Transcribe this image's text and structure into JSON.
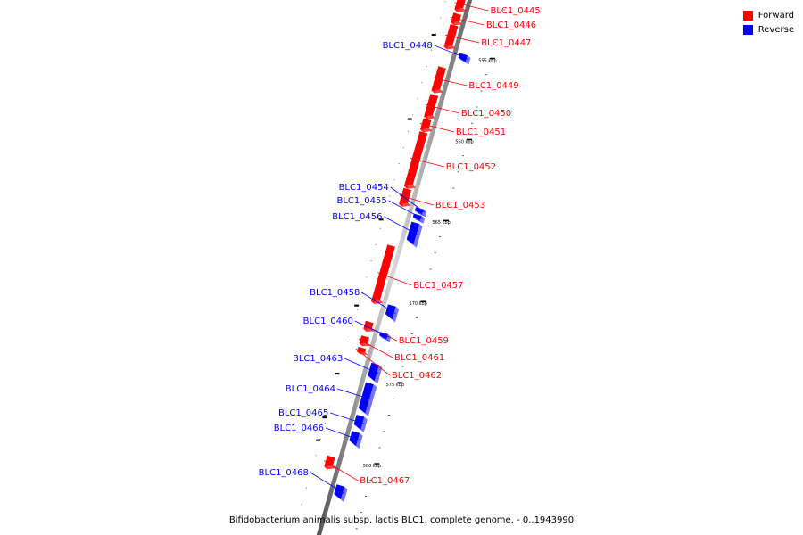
{
  "colors": {
    "forward": "#ff0000",
    "reverse": "#0000ff"
  },
  "legend": [
    {
      "label": "Forward",
      "color": "#ff0000"
    },
    {
      "label": "Reverse",
      "color": "#0000ff"
    }
  ],
  "caption": "Bifidobacterium animalis subsp. lactis BLC1, complete genome. - 0..1943990",
  "genome_range": {
    "start_kbp": 552,
    "end_kbp": 585
  },
  "scale_marks": [
    {
      "label": "555 kbp",
      "kbp": 555
    },
    {
      "label": "560 kbp",
      "kbp": 560
    },
    {
      "label": "565 kbp",
      "kbp": 565
    },
    {
      "label": "570 kbp",
      "kbp": 570
    },
    {
      "label": "575 kbp",
      "kbp": 575
    },
    {
      "label": "580 kbp",
      "kbp": 580
    }
  ],
  "genes": [
    {
      "label": "BLC1_0445",
      "strand": "forward",
      "start_kbp": 552.0,
      "end_kbp": 552.8
    },
    {
      "label": "BLC1_0446",
      "strand": "forward",
      "start_kbp": 553.0,
      "end_kbp": 553.6
    },
    {
      "label": "BLC1_0447",
      "strand": "forward",
      "start_kbp": 553.7,
      "end_kbp": 555.1
    },
    {
      "label": "BLC1_0448",
      "strand": "reverse",
      "start_kbp": 555.2,
      "end_kbp": 555.6
    },
    {
      "label": "BLC1_0449",
      "strand": "forward",
      "start_kbp": 556.3,
      "end_kbp": 557.8
    },
    {
      "label": "BLC1_0450",
      "strand": "forward",
      "start_kbp": 558.0,
      "end_kbp": 559.4
    },
    {
      "label": "BLC1_0451",
      "strand": "forward",
      "start_kbp": 559.5,
      "end_kbp": 560.2
    },
    {
      "label": "BLC1_0452",
      "strand": "forward",
      "start_kbp": 560.3,
      "end_kbp": 563.7
    },
    {
      "label": "BLC1_0453",
      "strand": "forward",
      "start_kbp": 563.8,
      "end_kbp": 564.8
    },
    {
      "label": "BLC1_0454",
      "strand": "reverse",
      "start_kbp": 564.7,
      "end_kbp": 565.0
    },
    {
      "label": "BLC1_0455",
      "strand": "reverse",
      "start_kbp": 565.1,
      "end_kbp": 565.4
    },
    {
      "label": "BLC1_0456",
      "strand": "reverse",
      "start_kbp": 565.6,
      "end_kbp": 566.9
    },
    {
      "label": "BLC1_0457",
      "strand": "forward",
      "start_kbp": 567.3,
      "end_kbp": 570.8
    },
    {
      "label": "BLC1_0458",
      "strand": "reverse",
      "start_kbp": 570.7,
      "end_kbp": 571.5
    },
    {
      "label": "BLC1_0459",
      "strand": "forward",
      "start_kbp": 572.0,
      "end_kbp": 572.5
    },
    {
      "label": "BLC1_0460",
      "strand": "reverse",
      "start_kbp": 572.4,
      "end_kbp": 572.7
    },
    {
      "label": "BLC1_0461",
      "strand": "forward",
      "start_kbp": 572.9,
      "end_kbp": 573.4
    },
    {
      "label": "BLC1_0462",
      "strand": "forward",
      "start_kbp": 573.6,
      "end_kbp": 573.9
    },
    {
      "label": "BLC1_0463",
      "strand": "reverse",
      "start_kbp": 574.3,
      "end_kbp": 575.3
    },
    {
      "label": "BLC1_0464",
      "strand": "reverse",
      "start_kbp": 575.5,
      "end_kbp": 577.3
    },
    {
      "label": "BLC1_0465",
      "strand": "reverse",
      "start_kbp": 577.5,
      "end_kbp": 578.3
    },
    {
      "label": "BLC1_0466",
      "strand": "reverse",
      "start_kbp": 578.5,
      "end_kbp": 579.3
    },
    {
      "label": "BLC1_0467",
      "strand": "forward",
      "start_kbp": 580.3,
      "end_kbp": 581.0
    },
    {
      "label": "BLC1_0468",
      "strand": "reverse",
      "start_kbp": 581.8,
      "end_kbp": 582.6
    }
  ]
}
